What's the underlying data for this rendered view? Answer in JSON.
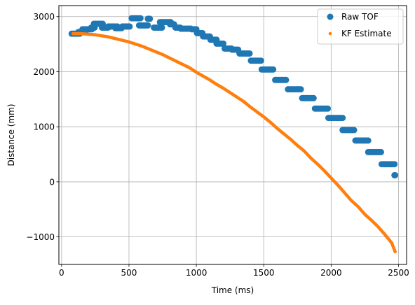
{
  "chart_data": {
    "type": "scatter",
    "xlabel": "Time (ms)",
    "ylabel": "Distance (mm)",
    "xlim": [
      -20,
      2560
    ],
    "ylim": [
      -1500,
      3200
    ],
    "xticks": [
      0,
      500,
      1000,
      1500,
      2000,
      2500
    ],
    "yticks": [
      -1000,
      0,
      1000,
      2000,
      3000
    ],
    "xtick_labels": [
      "0",
      "500",
      "1000",
      "1500",
      "2000",
      "2500"
    ],
    "ytick_labels": [
      "−1000",
      "0",
      "1000",
      "2000",
      "3000"
    ],
    "grid": true,
    "legend_position": "top-right",
    "series": [
      {
        "name": "Raw TOF",
        "color": "#1f77b4",
        "marker": "large-circle",
        "segments": [
          {
            "x0": 75,
            "x1": 135,
            "y": 2690
          },
          {
            "x0": 125,
            "x1": 175,
            "y": 2720
          },
          {
            "x0": 155,
            "x1": 225,
            "y": 2770
          },
          {
            "x0": 220,
            "x1": 245,
            "y": 2800
          },
          {
            "x0": 240,
            "x1": 305,
            "y": 2870
          },
          {
            "x0": 300,
            "x1": 345,
            "y": 2800
          },
          {
            "x0": 345,
            "x1": 415,
            "y": 2820
          },
          {
            "x0": 400,
            "x1": 445,
            "y": 2790
          },
          {
            "x0": 450,
            "x1": 505,
            "y": 2820
          },
          {
            "x0": 520,
            "x1": 585,
            "y": 2970
          },
          {
            "x0": 575,
            "x1": 640,
            "y": 2840
          },
          {
            "x0": 640,
            "x1": 655,
            "y": 2960
          },
          {
            "x0": 685,
            "x1": 745,
            "y": 2800
          },
          {
            "x0": 730,
            "x1": 810,
            "y": 2900
          },
          {
            "x0": 805,
            "x1": 835,
            "y": 2860
          },
          {
            "x0": 845,
            "x1": 880,
            "y": 2800
          },
          {
            "x0": 885,
            "x1": 960,
            "y": 2780
          },
          {
            "x0": 965,
            "x1": 1000,
            "y": 2770
          },
          {
            "x0": 1005,
            "x1": 1045,
            "y": 2700
          },
          {
            "x0": 1050,
            "x1": 1100,
            "y": 2640
          },
          {
            "x0": 1105,
            "x1": 1150,
            "y": 2580
          },
          {
            "x0": 1150,
            "x1": 1200,
            "y": 2510
          },
          {
            "x0": 1210,
            "x1": 1260,
            "y": 2420
          },
          {
            "x0": 1265,
            "x1": 1310,
            "y": 2400
          },
          {
            "x0": 1320,
            "x1": 1395,
            "y": 2330
          },
          {
            "x0": 1405,
            "x1": 1480,
            "y": 2200
          },
          {
            "x0": 1485,
            "x1": 1570,
            "y": 2040
          },
          {
            "x0": 1585,
            "x1": 1665,
            "y": 1850
          },
          {
            "x0": 1680,
            "x1": 1775,
            "y": 1680
          },
          {
            "x0": 1785,
            "x1": 1870,
            "y": 1520
          },
          {
            "x0": 1880,
            "x1": 1975,
            "y": 1330
          },
          {
            "x0": 1980,
            "x1": 2085,
            "y": 1160
          },
          {
            "x0": 2085,
            "x1": 2170,
            "y": 940
          },
          {
            "x0": 2180,
            "x1": 2275,
            "y": 750
          },
          {
            "x0": 2275,
            "x1": 2370,
            "y": 540
          },
          {
            "x0": 2375,
            "x1": 2470,
            "y": 320
          },
          {
            "x0": 2470,
            "x1": 2475,
            "y": 120
          }
        ]
      },
      {
        "name": "KF Estimate",
        "color": "#ff7f0e",
        "marker": "small-circle",
        "x": [
          85,
          150,
          200,
          250,
          300,
          350,
          400,
          450,
          500,
          550,
          600,
          650,
          700,
          750,
          800,
          850,
          900,
          950,
          1000,
          1050,
          1100,
          1150,
          1200,
          1250,
          1300,
          1350,
          1400,
          1450,
          1500,
          1550,
          1600,
          1650,
          1700,
          1750,
          1800,
          1850,
          1900,
          1950,
          2000,
          2050,
          2100,
          2150,
          2200,
          2250,
          2300,
          2350,
          2400,
          2450,
          2475
        ],
        "y": [
          2690,
          2690,
          2680,
          2670,
          2650,
          2630,
          2600,
          2570,
          2540,
          2500,
          2460,
          2410,
          2360,
          2310,
          2250,
          2190,
          2130,
          2070,
          1990,
          1920,
          1850,
          1770,
          1700,
          1620,
          1540,
          1460,
          1360,
          1270,
          1180,
          1080,
          970,
          870,
          770,
          660,
          560,
          430,
          320,
          200,
          70,
          -60,
          -200,
          -340,
          -450,
          -590,
          -700,
          -820,
          -960,
          -1110,
          -1270
        ]
      }
    ]
  }
}
